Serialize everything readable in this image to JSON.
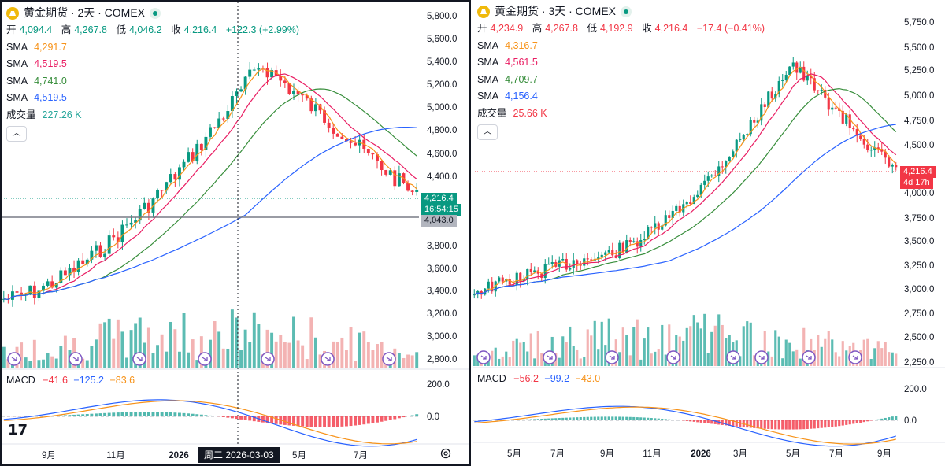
{
  "left": {
    "title": "黄金期货 · 2天 · COMEX",
    "ohlc": {
      "open_label": "开",
      "open": "4,094.4",
      "high_label": "高",
      "high": "4,267.8",
      "low_label": "低",
      "low": "4,046.2",
      "close_label": "收",
      "close": "4,216.4",
      "change": "+122.3 (+2.99%)"
    },
    "sma": [
      {
        "label": "SMA",
        "value": "4,291.7",
        "color": "#f7931a"
      },
      {
        "label": "SMA",
        "value": "4,519.5",
        "color": "#e91e63"
      },
      {
        "label": "SMA",
        "value": "4,741.0",
        "color": "#388e3c"
      },
      {
        "label": "SMA",
        "value": "4,519.5",
        "color": "#2962ff"
      }
    ],
    "volume": {
      "label": "成交量",
      "value": "227.26 K",
      "color": "#26a69a"
    },
    "price_axis": [
      "5,800.0",
      "5,600.0",
      "5,400.0",
      "5,200.0",
      "5,000.0",
      "4,800.0",
      "4,600.0",
      "4,400.0",
      "3,800.0",
      "3,600.0",
      "3,400.0",
      "3,200.0",
      "3,000.0",
      "2,800.0"
    ],
    "price_tag": "4,216.4",
    "countdown_tag": "16:54:15",
    "crosshair_price_tag": "4,043.0",
    "macd": {
      "label": "MACD",
      "v1": "−41.6",
      "v2": "−125.2",
      "v3": "−83.6"
    },
    "macd_axis": [
      "200.0",
      "0.0"
    ],
    "time_axis": [
      "9月",
      "11月",
      "2026",
      "5月",
      "7月"
    ],
    "crosshair_date": "周二 2026-03-03"
  },
  "right": {
    "title": "黄金期货 · 3天 · COMEX",
    "ohlc": {
      "open_label": "开",
      "open": "4,234.9",
      "high_label": "高",
      "high": "4,267.8",
      "low_label": "低",
      "low": "4,192.9",
      "close_label": "收",
      "close": "4,216.4",
      "change": "−17.4 (−0.41%)"
    },
    "sma": [
      {
        "label": "SMA",
        "value": "4,316.7",
        "color": "#f7931a"
      },
      {
        "label": "SMA",
        "value": "4,561.5",
        "color": "#e91e63"
      },
      {
        "label": "SMA",
        "value": "4,709.7",
        "color": "#388e3c"
      },
      {
        "label": "SMA",
        "value": "4,156.4",
        "color": "#2962ff"
      }
    ],
    "volume": {
      "label": "成交量",
      "value": "25.66 K",
      "color": "#f23645"
    },
    "price_axis": [
      "5,750.0",
      "5,500.0",
      "5,250.0",
      "5,000.0",
      "4,750.0",
      "4,500.0",
      "4,000.0",
      "3,750.0",
      "3,500.0",
      "3,250.0",
      "3,000.0",
      "2,750.0",
      "2,500.0",
      "2,250.0"
    ],
    "price_tag": "4,216.4",
    "countdown_tag": "4d 17h",
    "macd": {
      "label": "MACD",
      "v1": "−56.2",
      "v2": "−99.2",
      "v3": "−43.0"
    },
    "macd_axis": [
      "200.0",
      "0.0"
    ],
    "time_axis": [
      "5月",
      "7月",
      "9月",
      "11月",
      "2026",
      "3月",
      "5月",
      "7月",
      "9月"
    ]
  }
}
